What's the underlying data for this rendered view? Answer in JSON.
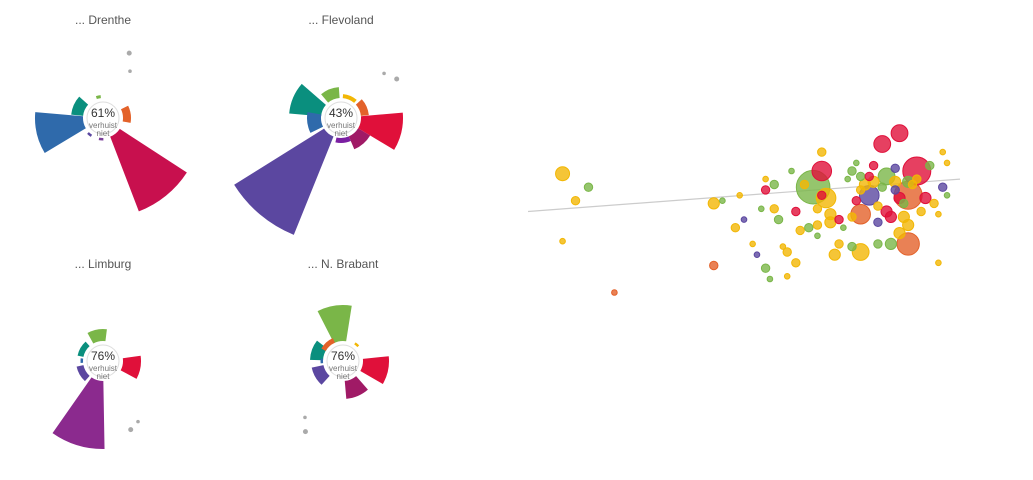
{
  "chart_data": [
    {
      "type": "radial-bar",
      "title": "... Drenthe",
      "value_label": "61%",
      "caption_lines": [
        "verhuist",
        "niet"
      ],
      "segments": [
        {
          "color": "#2f6aab",
          "angle": 257,
          "value": 48
        },
        {
          "color": "#0a8f7e",
          "angle": 294,
          "value": 12
        },
        {
          "color": "#7ab648",
          "angle": 348,
          "value": 3
        },
        {
          "color": "#e3622a",
          "angle": 82,
          "value": 8
        },
        {
          "color": "#c8104e",
          "angle": 141,
          "value": 80
        },
        {
          "color": "#7b3f9a",
          "angle": 185,
          "value": 2
        },
        {
          "color": "#5b47a0",
          "angle": 219,
          "value": 2
        }
      ],
      "dots": [
        {
          "angle": 30,
          "r": 34
        },
        {
          "angle": 22,
          "r": 50
        }
      ]
    },
    {
      "type": "radial-bar",
      "title": "... Flevoland",
      "value_label": "43%",
      "caption_lines": [
        "verhuist",
        "niet"
      ],
      "segments": [
        {
          "color": "#0a8f7e",
          "angle": 293,
          "value": 32
        },
        {
          "color": "#7ab648",
          "angle": 338,
          "value": 11
        },
        {
          "color": "#f2b705",
          "angle": 23,
          "value": 4
        },
        {
          "color": "#e3622a",
          "angle": 66,
          "value": 8
        },
        {
          "color": "#e0103a",
          "angle": 103,
          "value": 42
        },
        {
          "color": "#a01a66",
          "angle": 139,
          "value": 14
        },
        {
          "color": "#7b1fa2",
          "angle": 175,
          "value": 5
        },
        {
          "color": "#5b47a0",
          "angle": 220,
          "value": 106
        },
        {
          "color": "#2f6aab",
          "angle": 262,
          "value": 14
        }
      ],
      "dots": [
        {
          "angle": 44,
          "r": 42
        },
        {
          "angle": 55,
          "r": 48
        }
      ]
    },
    {
      "type": "radial-bar",
      "title": "... Limburg",
      "value_label": "76%",
      "caption_lines": [
        "verhuist",
        "niet"
      ],
      "segments": [
        {
          "color": "#0a8f7e",
          "angle": 300,
          "value": 6
        },
        {
          "color": "#7ab648",
          "angle": 349,
          "value": 12
        },
        {
          "color": "#e0103a",
          "angle": 100,
          "value": 18
        },
        {
          "color": "#8b2a8e",
          "angle": 197,
          "value": 68
        },
        {
          "color": "#5b47a0",
          "angle": 240,
          "value": 7
        },
        {
          "color": "#2f6aab",
          "angle": 271,
          "value": 2
        }
      ],
      "dots": [
        {
          "angle": 150,
          "r": 50
        },
        {
          "angle": 158,
          "r": 54
        }
      ]
    },
    {
      "type": "radial-bar",
      "title": "... N. Brabant",
      "value_label": "76%",
      "caption_lines": [
        "verhuist",
        "niet"
      ],
      "segments": [
        {
          "color": "#7ab648",
          "angle": 351,
          "value": 36
        },
        {
          "color": "#f2b705",
          "angle": 40,
          "value": 2
        },
        {
          "color": "#e0103a",
          "angle": 102,
          "value": 26
        },
        {
          "color": "#a01a66",
          "angle": 157,
          "value": 18
        },
        {
          "color": "#5b47a0",
          "angle": 240,
          "value": 12
        },
        {
          "color": "#0a8f7e",
          "angle": 290,
          "value": 13
        },
        {
          "color": "#e3622a",
          "angle": 318,
          "value": 5
        },
        {
          "color": "#2f6aab",
          "angle": 270,
          "value": 2
        }
      ],
      "dots": [
        {
          "angle": 214,
          "r": 48
        },
        {
          "angle": 208,
          "r": 60
        }
      ]
    },
    {
      "type": "scatter",
      "trendline_color": "#cccccc",
      "xlim": [
        0,
        100
      ],
      "ylim": [
        0,
        100
      ],
      "trendline": {
        "x": [
          0,
          100
        ],
        "y": [
          55,
          67
        ]
      },
      "points": [
        {
          "x": 8,
          "y": 69,
          "size": 5,
          "color": "#f2b705"
        },
        {
          "x": 14,
          "y": 64,
          "size": 3,
          "color": "#7ab648"
        },
        {
          "x": 11,
          "y": 59,
          "size": 3,
          "color": "#f2b705"
        },
        {
          "x": 8,
          "y": 44,
          "size": 2,
          "color": "#f2b705"
        },
        {
          "x": 20,
          "y": 25,
          "size": 2,
          "color": "#e3622a"
        },
        {
          "x": 43,
          "y": 58,
          "size": 4,
          "color": "#f2b705"
        },
        {
          "x": 43,
          "y": 35,
          "size": 3,
          "color": "#e3622a"
        },
        {
          "x": 45,
          "y": 59,
          "size": 2,
          "color": "#7ab648"
        },
        {
          "x": 48,
          "y": 49,
          "size": 3,
          "color": "#f2b705"
        },
        {
          "x": 49,
          "y": 61,
          "size": 2,
          "color": "#f2b705"
        },
        {
          "x": 50,
          "y": 52,
          "size": 2,
          "color": "#5b47a0"
        },
        {
          "x": 52,
          "y": 43,
          "size": 2,
          "color": "#f2b705"
        },
        {
          "x": 53,
          "y": 39,
          "size": 2,
          "color": "#5b47a0"
        },
        {
          "x": 54,
          "y": 56,
          "size": 2,
          "color": "#7ab648"
        },
        {
          "x": 55,
          "y": 63,
          "size": 3,
          "color": "#e0103a"
        },
        {
          "x": 55,
          "y": 67,
          "size": 2,
          "color": "#f2b705"
        },
        {
          "x": 55,
          "y": 34,
          "size": 3,
          "color": "#7ab648"
        },
        {
          "x": 57,
          "y": 65,
          "size": 3,
          "color": "#7ab648"
        },
        {
          "x": 57,
          "y": 56,
          "size": 3,
          "color": "#f2b705"
        },
        {
          "x": 58,
          "y": 52,
          "size": 3,
          "color": "#7ab648"
        },
        {
          "x": 59,
          "y": 42,
          "size": 2,
          "color": "#f2b705"
        },
        {
          "x": 60,
          "y": 31,
          "size": 2,
          "color": "#f2b705"
        },
        {
          "x": 61,
          "y": 70,
          "size": 2,
          "color": "#7ab648"
        },
        {
          "x": 62,
          "y": 55,
          "size": 3,
          "color": "#e0103a"
        },
        {
          "x": 63,
          "y": 48,
          "size": 3,
          "color": "#f2b705"
        },
        {
          "x": 64,
          "y": 65,
          "size": 3,
          "color": "#f2b705"
        },
        {
          "x": 65,
          "y": 49,
          "size": 3,
          "color": "#7ab648"
        },
        {
          "x": 66,
          "y": 64,
          "size": 12,
          "color": "#7ab648"
        },
        {
          "x": 67,
          "y": 56,
          "size": 3,
          "color": "#f2b705"
        },
        {
          "x": 67,
          "y": 50,
          "size": 3,
          "color": "#f2b705"
        },
        {
          "x": 67,
          "y": 46,
          "size": 2,
          "color": "#7ab648"
        },
        {
          "x": 68,
          "y": 77,
          "size": 3,
          "color": "#f2b705"
        },
        {
          "x": 68,
          "y": 70,
          "size": 7,
          "color": "#e0103a"
        },
        {
          "x": 68,
          "y": 61,
          "size": 3,
          "color": "#e0103a"
        },
        {
          "x": 69,
          "y": 60,
          "size": 7,
          "color": "#f2b705"
        },
        {
          "x": 70,
          "y": 54,
          "size": 4,
          "color": "#f2b705"
        },
        {
          "x": 70,
          "y": 51,
          "size": 4,
          "color": "#f2b705"
        },
        {
          "x": 71,
          "y": 39,
          "size": 4,
          "color": "#f2b705"
        },
        {
          "x": 72,
          "y": 43,
          "size": 3,
          "color": "#f2b705"
        },
        {
          "x": 72,
          "y": 52,
          "size": 3,
          "color": "#e0103a"
        },
        {
          "x": 73,
          "y": 49,
          "size": 2,
          "color": "#7ab648"
        },
        {
          "x": 74,
          "y": 67,
          "size": 2,
          "color": "#7ab648"
        },
        {
          "x": 75,
          "y": 70,
          "size": 3,
          "color": "#7ab648"
        },
        {
          "x": 75,
          "y": 53,
          "size": 3,
          "color": "#f2b705"
        },
        {
          "x": 75,
          "y": 42,
          "size": 3,
          "color": "#7ab648"
        },
        {
          "x": 76,
          "y": 73,
          "size": 2,
          "color": "#7ab648"
        },
        {
          "x": 76,
          "y": 59,
          "size": 3,
          "color": "#e0103a"
        },
        {
          "x": 77,
          "y": 54,
          "size": 7,
          "color": "#e3622a"
        },
        {
          "x": 77,
          "y": 63,
          "size": 3,
          "color": "#f2b705"
        },
        {
          "x": 77,
          "y": 68,
          "size": 3,
          "color": "#7ab648"
        },
        {
          "x": 77,
          "y": 40,
          "size": 6,
          "color": "#f2b705"
        },
        {
          "x": 78,
          "y": 65,
          "size": 4,
          "color": "#f2b705"
        },
        {
          "x": 79,
          "y": 61,
          "size": 7,
          "color": "#5b47a0"
        },
        {
          "x": 79,
          "y": 68,
          "size": 3,
          "color": "#e0103a"
        },
        {
          "x": 80,
          "y": 72,
          "size": 3,
          "color": "#e0103a"
        },
        {
          "x": 80,
          "y": 66,
          "size": 4,
          "color": "#f2b705"
        },
        {
          "x": 81,
          "y": 57,
          "size": 3,
          "color": "#f2b705"
        },
        {
          "x": 81,
          "y": 51,
          "size": 3,
          "color": "#5b47a0"
        },
        {
          "x": 81,
          "y": 43,
          "size": 3,
          "color": "#7ab648"
        },
        {
          "x": 82,
          "y": 64,
          "size": 3,
          "color": "#7ab648"
        },
        {
          "x": 82,
          "y": 80,
          "size": 6,
          "color": "#e0103a"
        },
        {
          "x": 83,
          "y": 68,
          "size": 6,
          "color": "#7ab648"
        },
        {
          "x": 83,
          "y": 55,
          "size": 4,
          "color": "#e0103a"
        },
        {
          "x": 84,
          "y": 53,
          "size": 4,
          "color": "#e0103a"
        },
        {
          "x": 84,
          "y": 43,
          "size": 4,
          "color": "#7ab648"
        },
        {
          "x": 85,
          "y": 66,
          "size": 4,
          "color": "#f2b705"
        },
        {
          "x": 85,
          "y": 63,
          "size": 3,
          "color": "#5b47a0"
        },
        {
          "x": 85,
          "y": 71,
          "size": 3,
          "color": "#5b47a0"
        },
        {
          "x": 86,
          "y": 84,
          "size": 6,
          "color": "#e0103a"
        },
        {
          "x": 86,
          "y": 60,
          "size": 4,
          "color": "#e0103a"
        },
        {
          "x": 86,
          "y": 47,
          "size": 4,
          "color": "#f2b705"
        },
        {
          "x": 87,
          "y": 58,
          "size": 3,
          "color": "#7ab648"
        },
        {
          "x": 87,
          "y": 53,
          "size": 4,
          "color": "#f2b705"
        },
        {
          "x": 88,
          "y": 61,
          "size": 10,
          "color": "#e3622a"
        },
        {
          "x": 88,
          "y": 66,
          "size": 4,
          "color": "#7ab648"
        },
        {
          "x": 88,
          "y": 50,
          "size": 4,
          "color": "#f2b705"
        },
        {
          "x": 88,
          "y": 43,
          "size": 8,
          "color": "#e3622a"
        },
        {
          "x": 89,
          "y": 65,
          "size": 3,
          "color": "#f2b705"
        },
        {
          "x": 90,
          "y": 67,
          "size": 3,
          "color": "#f2b705"
        },
        {
          "x": 90,
          "y": 70,
          "size": 10,
          "color": "#e0103a"
        },
        {
          "x": 91,
          "y": 55,
          "size": 3,
          "color": "#f2b705"
        },
        {
          "x": 92,
          "y": 60,
          "size": 4,
          "color": "#e0103a"
        },
        {
          "x": 93,
          "y": 72,
          "size": 3,
          "color": "#7ab648"
        },
        {
          "x": 94,
          "y": 58,
          "size": 3,
          "color": "#f2b705"
        },
        {
          "x": 95,
          "y": 54,
          "size": 2,
          "color": "#f2b705"
        },
        {
          "x": 96,
          "y": 64,
          "size": 3,
          "color": "#5b47a0"
        },
        {
          "x": 97,
          "y": 61,
          "size": 2,
          "color": "#7ab648"
        },
        {
          "x": 97,
          "y": 73,
          "size": 2,
          "color": "#f2b705"
        },
        {
          "x": 96,
          "y": 77,
          "size": 2,
          "color": "#f2b705"
        },
        {
          "x": 95,
          "y": 36,
          "size": 2,
          "color": "#f2b705"
        },
        {
          "x": 62,
          "y": 36,
          "size": 3,
          "color": "#f2b705"
        },
        {
          "x": 60,
          "y": 40,
          "size": 3,
          "color": "#f2b705"
        },
        {
          "x": 56,
          "y": 30,
          "size": 2,
          "color": "#7ab648"
        }
      ]
    }
  ]
}
